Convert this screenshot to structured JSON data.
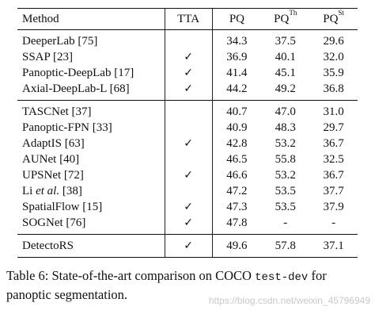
{
  "table": {
    "headers": {
      "method": "Method",
      "tta": "TTA",
      "pq": "PQ",
      "pq_th_base": "PQ",
      "pq_th_sup": "Th",
      "pq_st_base": "PQ",
      "pq_st_sup": "St"
    },
    "check_mark": "✓",
    "groups": [
      {
        "rows": [
          {
            "method": "DeeperLab [75]",
            "tta": "",
            "pq": "34.3",
            "pq_th": "37.5",
            "pq_st": "29.6"
          },
          {
            "method": "SSAP [23]",
            "tta": "✓",
            "pq": "36.9",
            "pq_th": "40.1",
            "pq_st": "32.0"
          },
          {
            "method": "Panoptic-DeepLab [17]",
            "tta": "✓",
            "pq": "41.4",
            "pq_th": "45.1",
            "pq_st": "35.9"
          },
          {
            "method": "Axial-DeepLab-L [68]",
            "tta": "✓",
            "pq": "44.2",
            "pq_th": "49.2",
            "pq_st": "36.8"
          }
        ]
      },
      {
        "rows": [
          {
            "method": "TASCNet [37]",
            "tta": "",
            "pq": "40.7",
            "pq_th": "47.0",
            "pq_st": "31.0"
          },
          {
            "method": "Panoptic-FPN [33]",
            "tta": "",
            "pq": "40.9",
            "pq_th": "48.3",
            "pq_st": "29.7"
          },
          {
            "method": "AdaptIS [63]",
            "tta": "✓",
            "pq": "42.8",
            "pq_th": "53.2",
            "pq_st": "36.7"
          },
          {
            "method": "AUNet [40]",
            "tta": "",
            "pq": "46.5",
            "pq_th": "55.8",
            "pq_st": "32.5"
          },
          {
            "method": "UPSNet [72]",
            "tta": "✓",
            "pq": "46.6",
            "pq_th": "53.2",
            "pq_st": "36.7"
          },
          {
            "method_prefix": "Li ",
            "method_italic": "et al.",
            "method_suffix": " [38]",
            "tta": "",
            "pq": "47.2",
            "pq_th": "53.5",
            "pq_st": "37.7"
          },
          {
            "method": "SpatialFlow [15]",
            "tta": "✓",
            "pq": "47.3",
            "pq_th": "53.5",
            "pq_st": "37.9"
          },
          {
            "method": "SOGNet [76]",
            "tta": "✓",
            "pq": "47.8",
            "pq_th": "-",
            "pq_st": "-"
          }
        ]
      },
      {
        "rows": [
          {
            "method": "DetectoRS",
            "tta": "✓",
            "pq": "49.6",
            "pq_th": "57.8",
            "pq_st": "37.1"
          }
        ]
      }
    ]
  },
  "caption": {
    "line1_before": "Table 6: State-of-the-art comparison on COCO ",
    "line1_code": "test-dev",
    "line1_after": " for",
    "line2": "panoptic segmentation."
  },
  "watermark": "https://blog.csdn.net/weixin_45796949"
}
